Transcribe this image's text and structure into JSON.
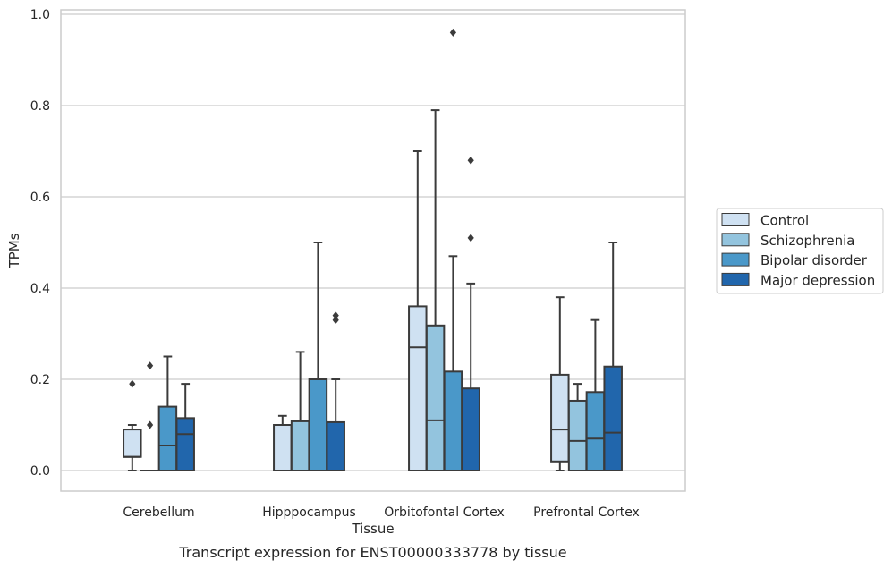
{
  "chart_data": {
    "type": "box",
    "title": "",
    "caption": "Transcript expression for ENST00000333778 by tissue",
    "xlabel": "Tissue",
    "ylabel": "TPMs",
    "ylim": [
      -0.045,
      1.01
    ],
    "yticks": [
      "0.0",
      "0.2",
      "0.4",
      "0.6",
      "0.8",
      "1.0"
    ],
    "ytick_values": [
      0,
      0.2,
      0.4,
      0.6,
      0.8,
      1.0
    ],
    "grid": true,
    "legend_position": "right",
    "categories": [
      "Cerebellum",
      "Hipppocampus",
      "Orbitofontal Cortex",
      "Prefrontal Cortex"
    ],
    "series": [
      {
        "name": "Control",
        "color": "#cfe1f2",
        "boxes": [
          {
            "whislo": 0.0,
            "q1": 0.03,
            "med": 0.03,
            "q3": 0.09,
            "whishi": 0.1,
            "fliers": [
              0.19
            ]
          },
          {
            "whislo": 0.0,
            "q1": 0.0,
            "med": 0.0,
            "q3": 0.1,
            "whishi": 0.12,
            "fliers": []
          },
          {
            "whislo": 0.0,
            "q1": 0.0,
            "med": 0.27,
            "q3": 0.36,
            "whishi": 0.7,
            "fliers": []
          },
          {
            "whislo": 0.0,
            "q1": 0.02,
            "med": 0.09,
            "q3": 0.21,
            "whishi": 0.38,
            "fliers": []
          }
        ]
      },
      {
        "name": "Schizophrenia",
        "color": "#93c4de",
        "boxes": [
          {
            "whislo": 0.0,
            "q1": 0.0,
            "med": 0.0,
            "q3": 0.0,
            "whishi": 0.0,
            "fliers": [
              0.1,
              0.23
            ]
          },
          {
            "whislo": 0.0,
            "q1": 0.0,
            "med": 0.0,
            "q3": 0.108,
            "whishi": 0.26,
            "fliers": []
          },
          {
            "whislo": 0.0,
            "q1": 0.0,
            "med": 0.11,
            "q3": 0.318,
            "whishi": 0.79,
            "fliers": []
          },
          {
            "whislo": 0.0,
            "q1": 0.0,
            "med": 0.065,
            "q3": 0.153,
            "whishi": 0.19,
            "fliers": []
          }
        ]
      },
      {
        "name": "Bipolar disorder",
        "color": "#4a98c9",
        "boxes": [
          {
            "whislo": 0.0,
            "q1": 0.0,
            "med": 0.055,
            "q3": 0.14,
            "whishi": 0.25,
            "fliers": []
          },
          {
            "whislo": 0.0,
            "q1": 0.0,
            "med": 0.0,
            "q3": 0.2,
            "whishi": 0.5,
            "fliers": []
          },
          {
            "whislo": 0.0,
            "q1": 0.0,
            "med": 0.0,
            "q3": 0.217,
            "whishi": 0.47,
            "fliers": [
              0.96
            ]
          },
          {
            "whislo": 0.0,
            "q1": 0.0,
            "med": 0.07,
            "q3": 0.172,
            "whishi": 0.33,
            "fliers": []
          }
        ]
      },
      {
        "name": "Major depression",
        "color": "#2166ac",
        "boxes": [
          {
            "whislo": 0.0,
            "q1": 0.0,
            "med": 0.08,
            "q3": 0.115,
            "whishi": 0.19,
            "fliers": []
          },
          {
            "whislo": 0.0,
            "q1": 0.0,
            "med": 0.0,
            "q3": 0.106,
            "whishi": 0.2,
            "fliers": [
              0.33,
              0.34
            ]
          },
          {
            "whislo": 0.0,
            "q1": 0.0,
            "med": 0.0,
            "q3": 0.18,
            "whishi": 0.41,
            "fliers": [
              0.51,
              0.68
            ]
          },
          {
            "whislo": 0.0,
            "q1": 0.0,
            "med": 0.083,
            "q3": 0.228,
            "whishi": 0.5,
            "fliers": []
          }
        ]
      }
    ]
  }
}
